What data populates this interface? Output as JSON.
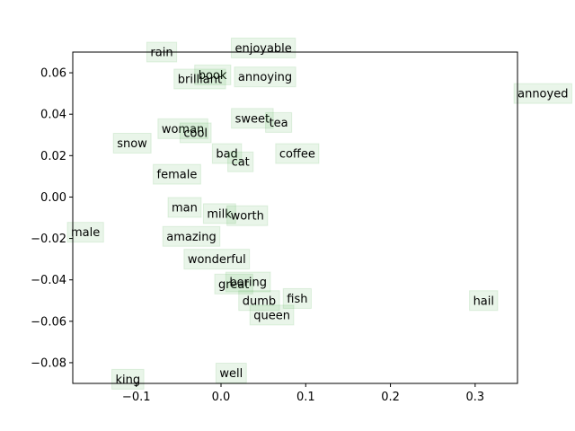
{
  "chart_data": {
    "type": "scatter",
    "title": "",
    "xlabel": "",
    "ylabel": "",
    "xlim": [
      -0.175,
      0.35
    ],
    "ylim": [
      -0.09,
      0.07
    ],
    "xticks": [
      -0.1,
      0.0,
      0.1,
      0.2,
      0.3
    ],
    "xtick_labels": [
      "−0.1",
      "0.0",
      "0.1",
      "0.2",
      "0.3"
    ],
    "yticks": [
      -0.08,
      -0.06,
      -0.04,
      -0.02,
      0.0,
      0.02,
      0.04,
      0.06
    ],
    "ytick_labels": [
      "−0.08",
      "−0.06",
      "−0.04",
      "−0.02",
      "0.00",
      "0.02",
      "0.04",
      "0.06"
    ],
    "grid": false,
    "label_box_color": "#2ca02c",
    "points": [
      {
        "label": "rain",
        "x": -0.07,
        "y": 0.07
      },
      {
        "label": "enjoyable",
        "x": 0.05,
        "y": 0.072
      },
      {
        "label": "book",
        "x": -0.01,
        "y": 0.059
      },
      {
        "label": "brilliant",
        "x": -0.025,
        "y": 0.057
      },
      {
        "label": "annoying",
        "x": 0.052,
        "y": 0.058
      },
      {
        "label": "annoyed",
        "x": 0.38,
        "y": 0.05
      },
      {
        "label": "sweet",
        "x": 0.037,
        "y": 0.038
      },
      {
        "label": "tea",
        "x": 0.068,
        "y": 0.036
      },
      {
        "label": "woman",
        "x": -0.045,
        "y": 0.033
      },
      {
        "label": "cool",
        "x": -0.03,
        "y": 0.031
      },
      {
        "label": "snow",
        "x": -0.105,
        "y": 0.026
      },
      {
        "label": "bad",
        "x": 0.007,
        "y": 0.021
      },
      {
        "label": "coffee",
        "x": 0.09,
        "y": 0.021
      },
      {
        "label": "cat",
        "x": 0.023,
        "y": 0.017
      },
      {
        "label": "female",
        "x": -0.052,
        "y": 0.011
      },
      {
        "label": "man",
        "x": -0.043,
        "y": -0.005
      },
      {
        "label": "milk",
        "x": -0.002,
        "y": -0.008
      },
      {
        "label": "worth",
        "x": 0.031,
        "y": -0.009
      },
      {
        "label": "male",
        "x": -0.16,
        "y": -0.017
      },
      {
        "label": "amazing",
        "x": -0.035,
        "y": -0.019
      },
      {
        "label": "wonderful",
        "x": -0.005,
        "y": -0.03
      },
      {
        "label": "great",
        "x": 0.015,
        "y": -0.042
      },
      {
        "label": "boring",
        "x": 0.032,
        "y": -0.041
      },
      {
        "label": "dumb",
        "x": 0.045,
        "y": -0.05
      },
      {
        "label": "fish",
        "x": 0.09,
        "y": -0.049
      },
      {
        "label": "queen",
        "x": 0.06,
        "y": -0.057
      },
      {
        "label": "hail",
        "x": 0.31,
        "y": -0.05
      },
      {
        "label": "well",
        "x": 0.012,
        "y": -0.085
      },
      {
        "label": "king",
        "x": -0.11,
        "y": -0.088
      }
    ]
  }
}
